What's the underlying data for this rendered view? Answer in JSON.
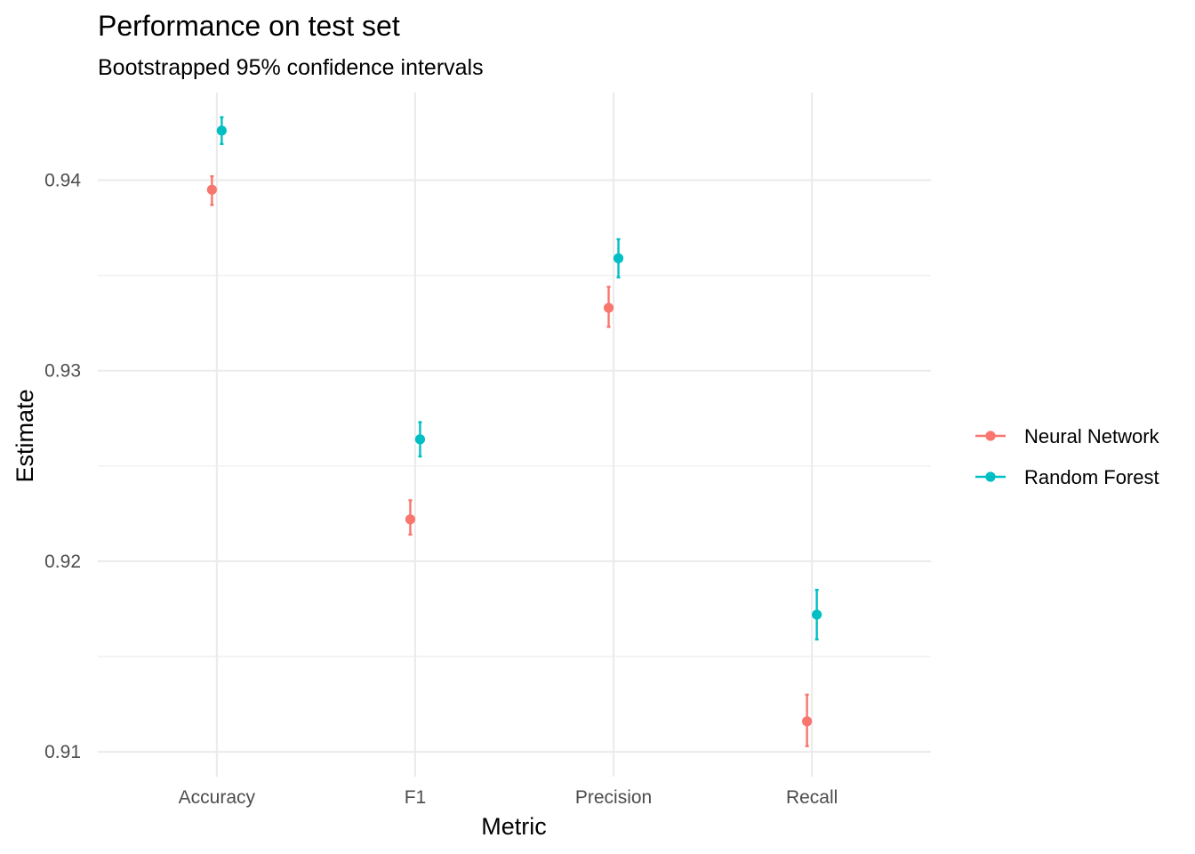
{
  "chart_data": {
    "type": "scatter",
    "title": "Performance on test set",
    "subtitle": "Bootstrapped 95% confidence intervals",
    "xlabel": "Metric",
    "ylabel": "Estimate",
    "categories": [
      "Accuracy",
      "F1",
      "Precision",
      "Recall"
    ],
    "ylim": [
      0.9087,
      0.9446
    ],
    "y_ticks": [
      0.91,
      0.92,
      0.93,
      0.94
    ],
    "y_tick_labels": [
      "0.91",
      "0.92",
      "0.93",
      "0.94"
    ],
    "grid": true,
    "legend_position": "right",
    "series": [
      {
        "name": "Neural Network",
        "color": "#F8766D",
        "values": [
          0.9395,
          0.9222,
          0.9333,
          0.9116
        ],
        "lower": [
          0.9387,
          0.9214,
          0.9323,
          0.9103
        ],
        "upper": [
          0.9402,
          0.9232,
          0.9344,
          0.913
        ]
      },
      {
        "name": "Random Forest",
        "color": "#00BFC4",
        "values": [
          0.9426,
          0.9264,
          0.9359,
          0.9172
        ],
        "lower": [
          0.9419,
          0.9255,
          0.9349,
          0.9159
        ],
        "upper": [
          0.9433,
          0.9273,
          0.9369,
          0.9185
        ]
      }
    ]
  }
}
